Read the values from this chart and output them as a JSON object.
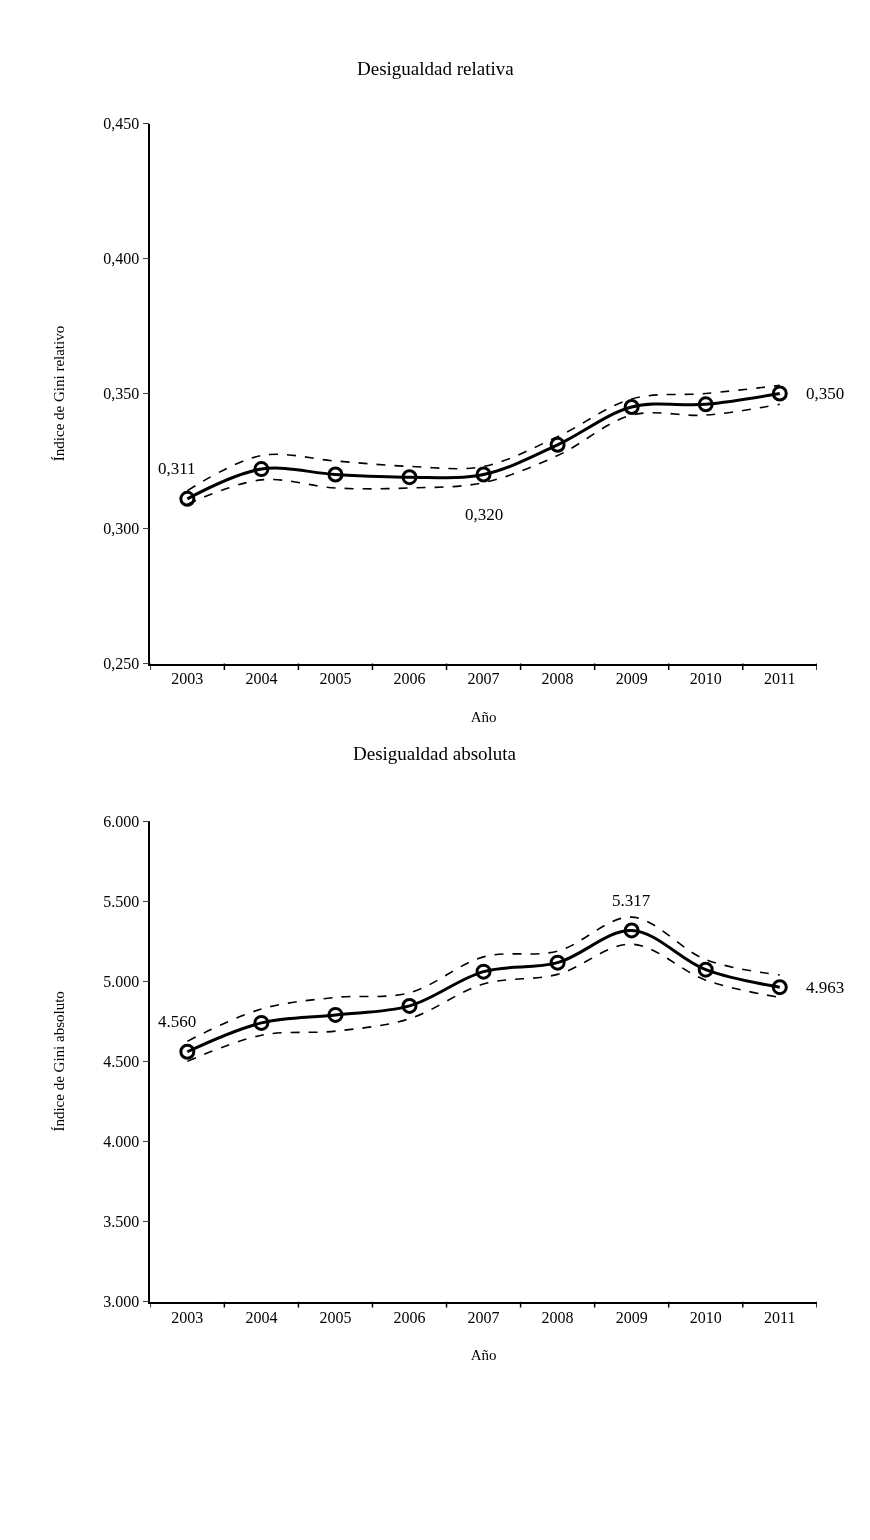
{
  "chart_data": [
    {
      "type": "line",
      "title": "Desigualdad relativa",
      "xlabel": "Año",
      "ylabel": "Índice de Gini relativo",
      "categories": [
        "2003",
        "2004",
        "2005",
        "2006",
        "2007",
        "2008",
        "2009",
        "2010",
        "2011"
      ],
      "series": [
        {
          "color": "#000000",
          "values": [
            0.311,
            0.322,
            0.32,
            0.319,
            0.32,
            0.331,
            0.345,
            0.346,
            0.35
          ],
          "value_labels": [
            "0,311",
            null,
            null,
            null,
            "0,320",
            null,
            null,
            null,
            "0,350"
          ]
        },
        {
          "color": "#000000",
          "line_style": "dashed",
          "marker": "none",
          "values": [
            0.309,
            0.318,
            0.315,
            0.315,
            0.317,
            0.327,
            0.342,
            0.342,
            0.346
          ]
        },
        {
          "color": "#000000",
          "line_style": "dashed",
          "marker": "none",
          "values": [
            0.314,
            0.327,
            0.325,
            0.323,
            0.323,
            0.334,
            0.348,
            0.35,
            0.353
          ]
        }
      ],
      "ylim": [
        0.25,
        0.45
      ],
      "yticks": [
        {
          "value": 0.25,
          "label": "0,250"
        },
        {
          "value": 0.3,
          "label": "0,300"
        },
        {
          "value": 0.35,
          "label": "0,350"
        },
        {
          "value": 0.4,
          "label": "0,400"
        },
        {
          "value": 0.45,
          "label": "0,450"
        }
      ],
      "marker": "circle",
      "line_style": "solid"
    },
    {
      "type": "line",
      "title": "Desigualdad absoluta",
      "xlabel": "Año",
      "ylabel": "Índice de Gini absoluto",
      "categories": [
        "2003",
        "2004",
        "2005",
        "2006",
        "2007",
        "2008",
        "2009",
        "2010",
        "2011"
      ],
      "series": [
        {
          "color": "#000000",
          "values": [
            4560,
            4740,
            4790,
            4846,
            5060,
            5116,
            5317,
            5072,
            4963
          ],
          "value_labels": [
            "4.560",
            null,
            null,
            null,
            null,
            null,
            "5.317",
            null,
            "4.963"
          ]
        },
        {
          "color": "#000000",
          "line_style": "dashed",
          "marker": "none",
          "values": [
            4500,
            4663,
            4689,
            4766,
            4983,
            5043,
            5231,
            5007,
            4899
          ]
        },
        {
          "color": "#000000",
          "line_style": "dashed",
          "marker": "none",
          "values": [
            4625,
            4827,
            4899,
            4928,
            5152,
            5188,
            5400,
            5135,
            5039
          ]
        }
      ],
      "ylim": [
        3000,
        6000
      ],
      "yticks": [
        {
          "value": 3000,
          "label": "3.000"
        },
        {
          "value": 3500,
          "label": "3.500"
        },
        {
          "value": 4000,
          "label": "4.000"
        },
        {
          "value": 4500,
          "label": "4.500"
        },
        {
          "value": 5000,
          "label": "5.000"
        },
        {
          "value": 5500,
          "label": "5.500"
        },
        {
          "value": 6000,
          "label": "6.000"
        }
      ],
      "marker": "circle",
      "line_style": "solid"
    }
  ]
}
